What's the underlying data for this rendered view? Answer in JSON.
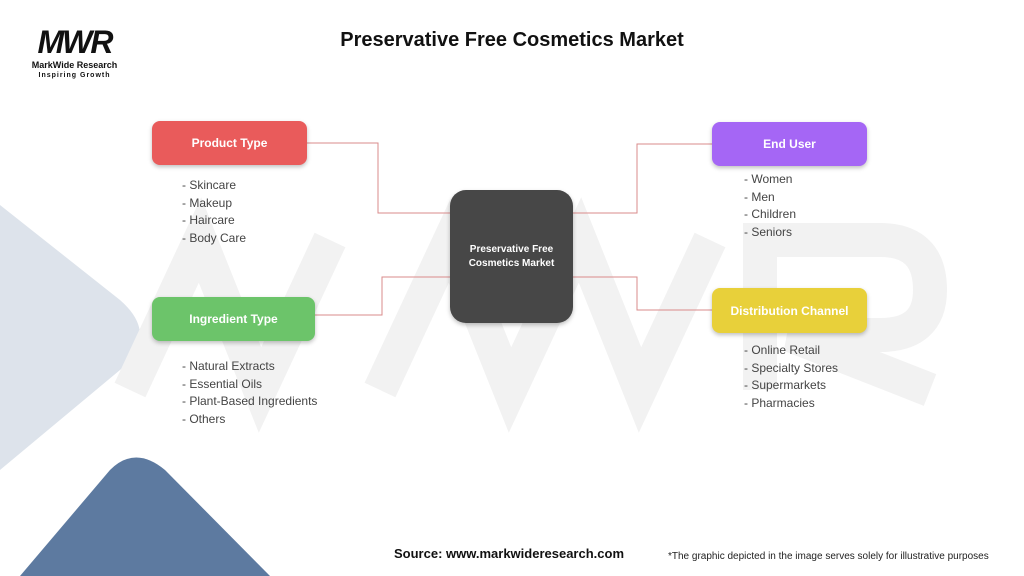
{
  "logo": {
    "mark": "MWR",
    "name": "MarkWide Research",
    "tagline": "Inspiring Growth"
  },
  "title": "Preservative Free Cosmetics Market",
  "center": {
    "line1": "Preservative Free",
    "line2": "Cosmetics Market",
    "color": "#474747"
  },
  "categories": [
    {
      "label": "Product Type",
      "color": "#e95b5b",
      "items": [
        "- Skincare",
        "- Makeup",
        "- Haircare",
        "- Body Care"
      ]
    },
    {
      "label": "Ingredient Type",
      "color": "#6cc46a",
      "items": [
        "- Natural Extracts",
        "- Essential Oils",
        "- Plant-Based Ingredients",
        "- Others"
      ]
    },
    {
      "label": "End User",
      "color": "#a566f5",
      "items": [
        "- Women",
        "- Men",
        "- Children",
        "- Seniors"
      ]
    },
    {
      "label": "Distribution Channel",
      "color": "#e8d03a",
      "items": [
        "- Online Retail",
        "- Specialty Stores",
        "- Supermarkets",
        "- Pharmacies"
      ]
    }
  ],
  "footer": {
    "source": "Source: www.markwideresearch.com",
    "disclaimer": "*The graphic depicted in the image serves solely for illustrative purposes"
  }
}
